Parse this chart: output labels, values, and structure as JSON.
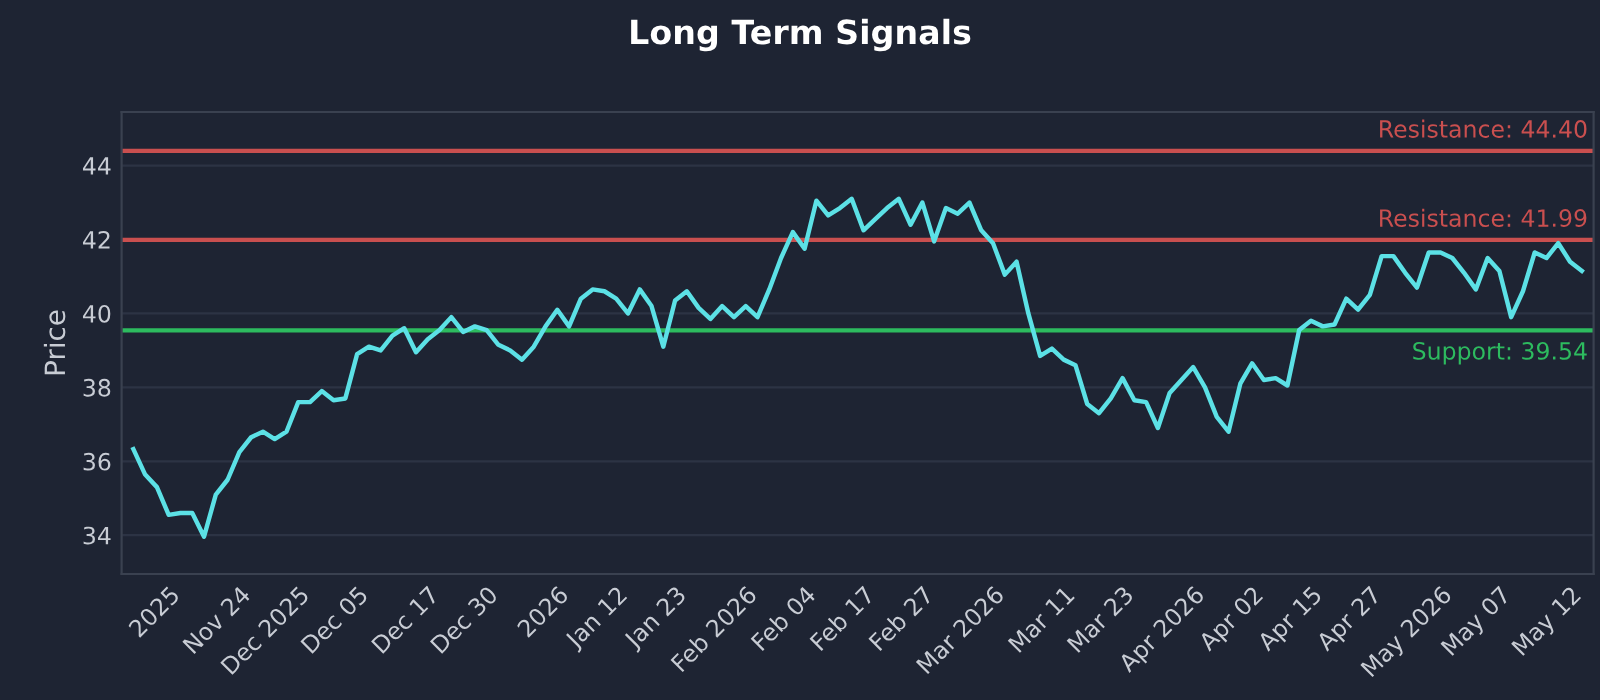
{
  "chart_data": {
    "type": "line",
    "title": "Long Term Signals",
    "ylabel": "Price",
    "categories": [
      null,
      null,
      null,
      "2025",
      null,
      null,
      null,
      null,
      null,
      "Nov 24",
      null,
      null,
      null,
      null,
      "Dec 2025",
      null,
      null,
      null,
      null,
      "Dec 05",
      null,
      null,
      null,
      null,
      null,
      "Dec 17",
      null,
      null,
      null,
      null,
      "Dec 30",
      null,
      null,
      null,
      null,
      null,
      "2026",
      null,
      null,
      null,
      null,
      "Jan 12",
      null,
      null,
      null,
      null,
      "Jan 23",
      null,
      null,
      null,
      null,
      null,
      "Feb 2026",
      null,
      null,
      null,
      null,
      "Feb 04",
      null,
      null,
      null,
      null,
      "Feb 17",
      null,
      null,
      null,
      null,
      "Feb 27",
      null,
      null,
      null,
      null,
      null,
      "Mar 2026",
      null,
      null,
      null,
      null,
      null,
      "Mar 11",
      null,
      null,
      null,
      null,
      "Mar 23",
      null,
      null,
      null,
      null,
      null,
      "Apr 2026",
      null,
      null,
      null,
      null,
      "Apr 02",
      null,
      null,
      null,
      null,
      "Apr 15",
      null,
      null,
      null,
      null,
      "Apr 27",
      null,
      null,
      null,
      null,
      null,
      "May 2026",
      null,
      null,
      null,
      null,
      "May 07",
      null,
      null,
      null,
      null,
      null,
      "May 12",
      null
    ],
    "series": [
      {
        "color": "#5ce1e6",
        "values": [
          36.33,
          35.64,
          35.3,
          34.55,
          34.6,
          34.6,
          33.96,
          35.1,
          35.5,
          36.25,
          36.65,
          36.8,
          36.6,
          36.8,
          37.6,
          37.6,
          37.9,
          37.65,
          37.7,
          38.9,
          39.1,
          39.0,
          39.4,
          39.6,
          38.95,
          39.3,
          39.55,
          39.9,
          39.5,
          39.65,
          39.55,
          39.15,
          39.0,
          38.75,
          39.1,
          39.65,
          40.1,
          39.65,
          40.4,
          40.65,
          40.6,
          40.4,
          40.0,
          40.65,
          40.2,
          39.1,
          40.35,
          40.6,
          40.15,
          39.85,
          40.2,
          39.9,
          40.2,
          39.9,
          40.65,
          41.5,
          42.2,
          41.75,
          43.05,
          42.65,
          42.85,
          43.1,
          42.25,
          42.55,
          42.85,
          43.1,
          42.4,
          43.0,
          41.95,
          42.85,
          42.7,
          43.0,
          42.25,
          41.9,
          41.05,
          41.4,
          40.0,
          38.85,
          39.05,
          38.75,
          38.6,
          37.55,
          37.3,
          37.7,
          38.25,
          37.65,
          37.6,
          36.9,
          37.85,
          38.2,
          38.55,
          38.0,
          37.2,
          36.8,
          38.1,
          38.65,
          38.2,
          38.25,
          38.05,
          39.55,
          39.8,
          39.65,
          39.7,
          40.4,
          40.1,
          40.5,
          41.55,
          41.55,
          41.1,
          40.7,
          41.65,
          41.65,
          41.5,
          41.1,
          40.65,
          41.5,
          41.15,
          39.9,
          40.6,
          41.65,
          41.5,
          41.9,
          41.4,
          41.15
        ]
      }
    ],
    "ylim": [
      32.95,
      45.45
    ],
    "yticks": [
      34,
      36,
      38,
      40,
      42,
      44
    ],
    "grid": "y",
    "ref_lines": [
      {
        "axis": "y",
        "value": 44.4,
        "label": "Resistance: 44.40",
        "color": "#c94f4f"
      },
      {
        "axis": "y",
        "value": 41.99,
        "label": "Resistance: 41.99",
        "color": "#c94f4f"
      },
      {
        "axis": "y",
        "value": 39.54,
        "label": "Support: 39.54",
        "color": "#2dbb5f"
      }
    ]
  }
}
